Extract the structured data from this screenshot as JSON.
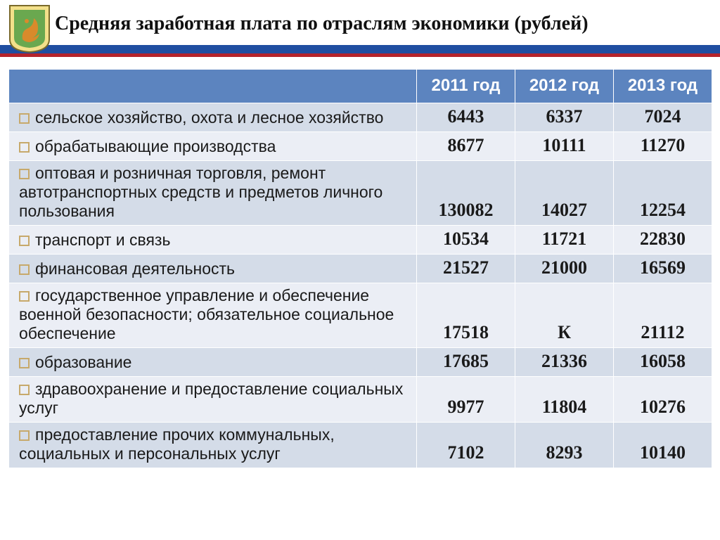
{
  "title": "Средняя заработная плата по отраслям экономики (рублей)",
  "columns": [
    "2011 год",
    "2012 год",
    "2013 год"
  ],
  "rows": [
    {
      "label": "сельское хозяйство, охота и лесное хозяйство",
      "v": [
        "6443",
        "6337",
        "7024"
      ]
    },
    {
      "label": "обрабатывающие  производства",
      "v": [
        "8677",
        "10111",
        "11270"
      ]
    },
    {
      "label": "оптовая и розничная торговля, ремонт автотранспортных средств и предметов личного пользования",
      "v": [
        "130082",
        "14027",
        "12254"
      ]
    },
    {
      "label": "транспорт и связь",
      "v": [
        "10534",
        "11721",
        "22830"
      ]
    },
    {
      "label": "финансовая деятельность",
      "v": [
        "21527",
        "21000",
        "16569"
      ]
    },
    {
      "label": "государственное управление и обеспечение военной безопасности; обязательное социальное обеспечение",
      "v": [
        "17518",
        "К",
        "21112"
      ]
    },
    {
      "label": "образование",
      "v": [
        "17685",
        "21336",
        "16058"
      ]
    },
    {
      "label": "здравоохранение и предоставление социальных услуг",
      "v": [
        "9977",
        "11804",
        "10276"
      ]
    },
    {
      "label": "предоставление прочих коммунальных, социальных  и персональных услуг",
      "v": [
        "7102",
        "8293",
        "10140"
      ]
    }
  ],
  "style": {
    "header_bg": "#5c84bf",
    "header_fg": "#ffffff",
    "row_odd_bg": "#d4dce8",
    "row_even_bg": "#ebeef5",
    "bullet_border": "#c7a96b",
    "rule_blue": "#1f4ea1",
    "rule_red": "#b5232b",
    "title_fontsize": 28,
    "label_fontsize": 23,
    "value_fontsize": 26,
    "header_fontsize": 24,
    "value_fontweight": "bold",
    "label_font": "Arial",
    "value_font": "Times New Roman"
  }
}
